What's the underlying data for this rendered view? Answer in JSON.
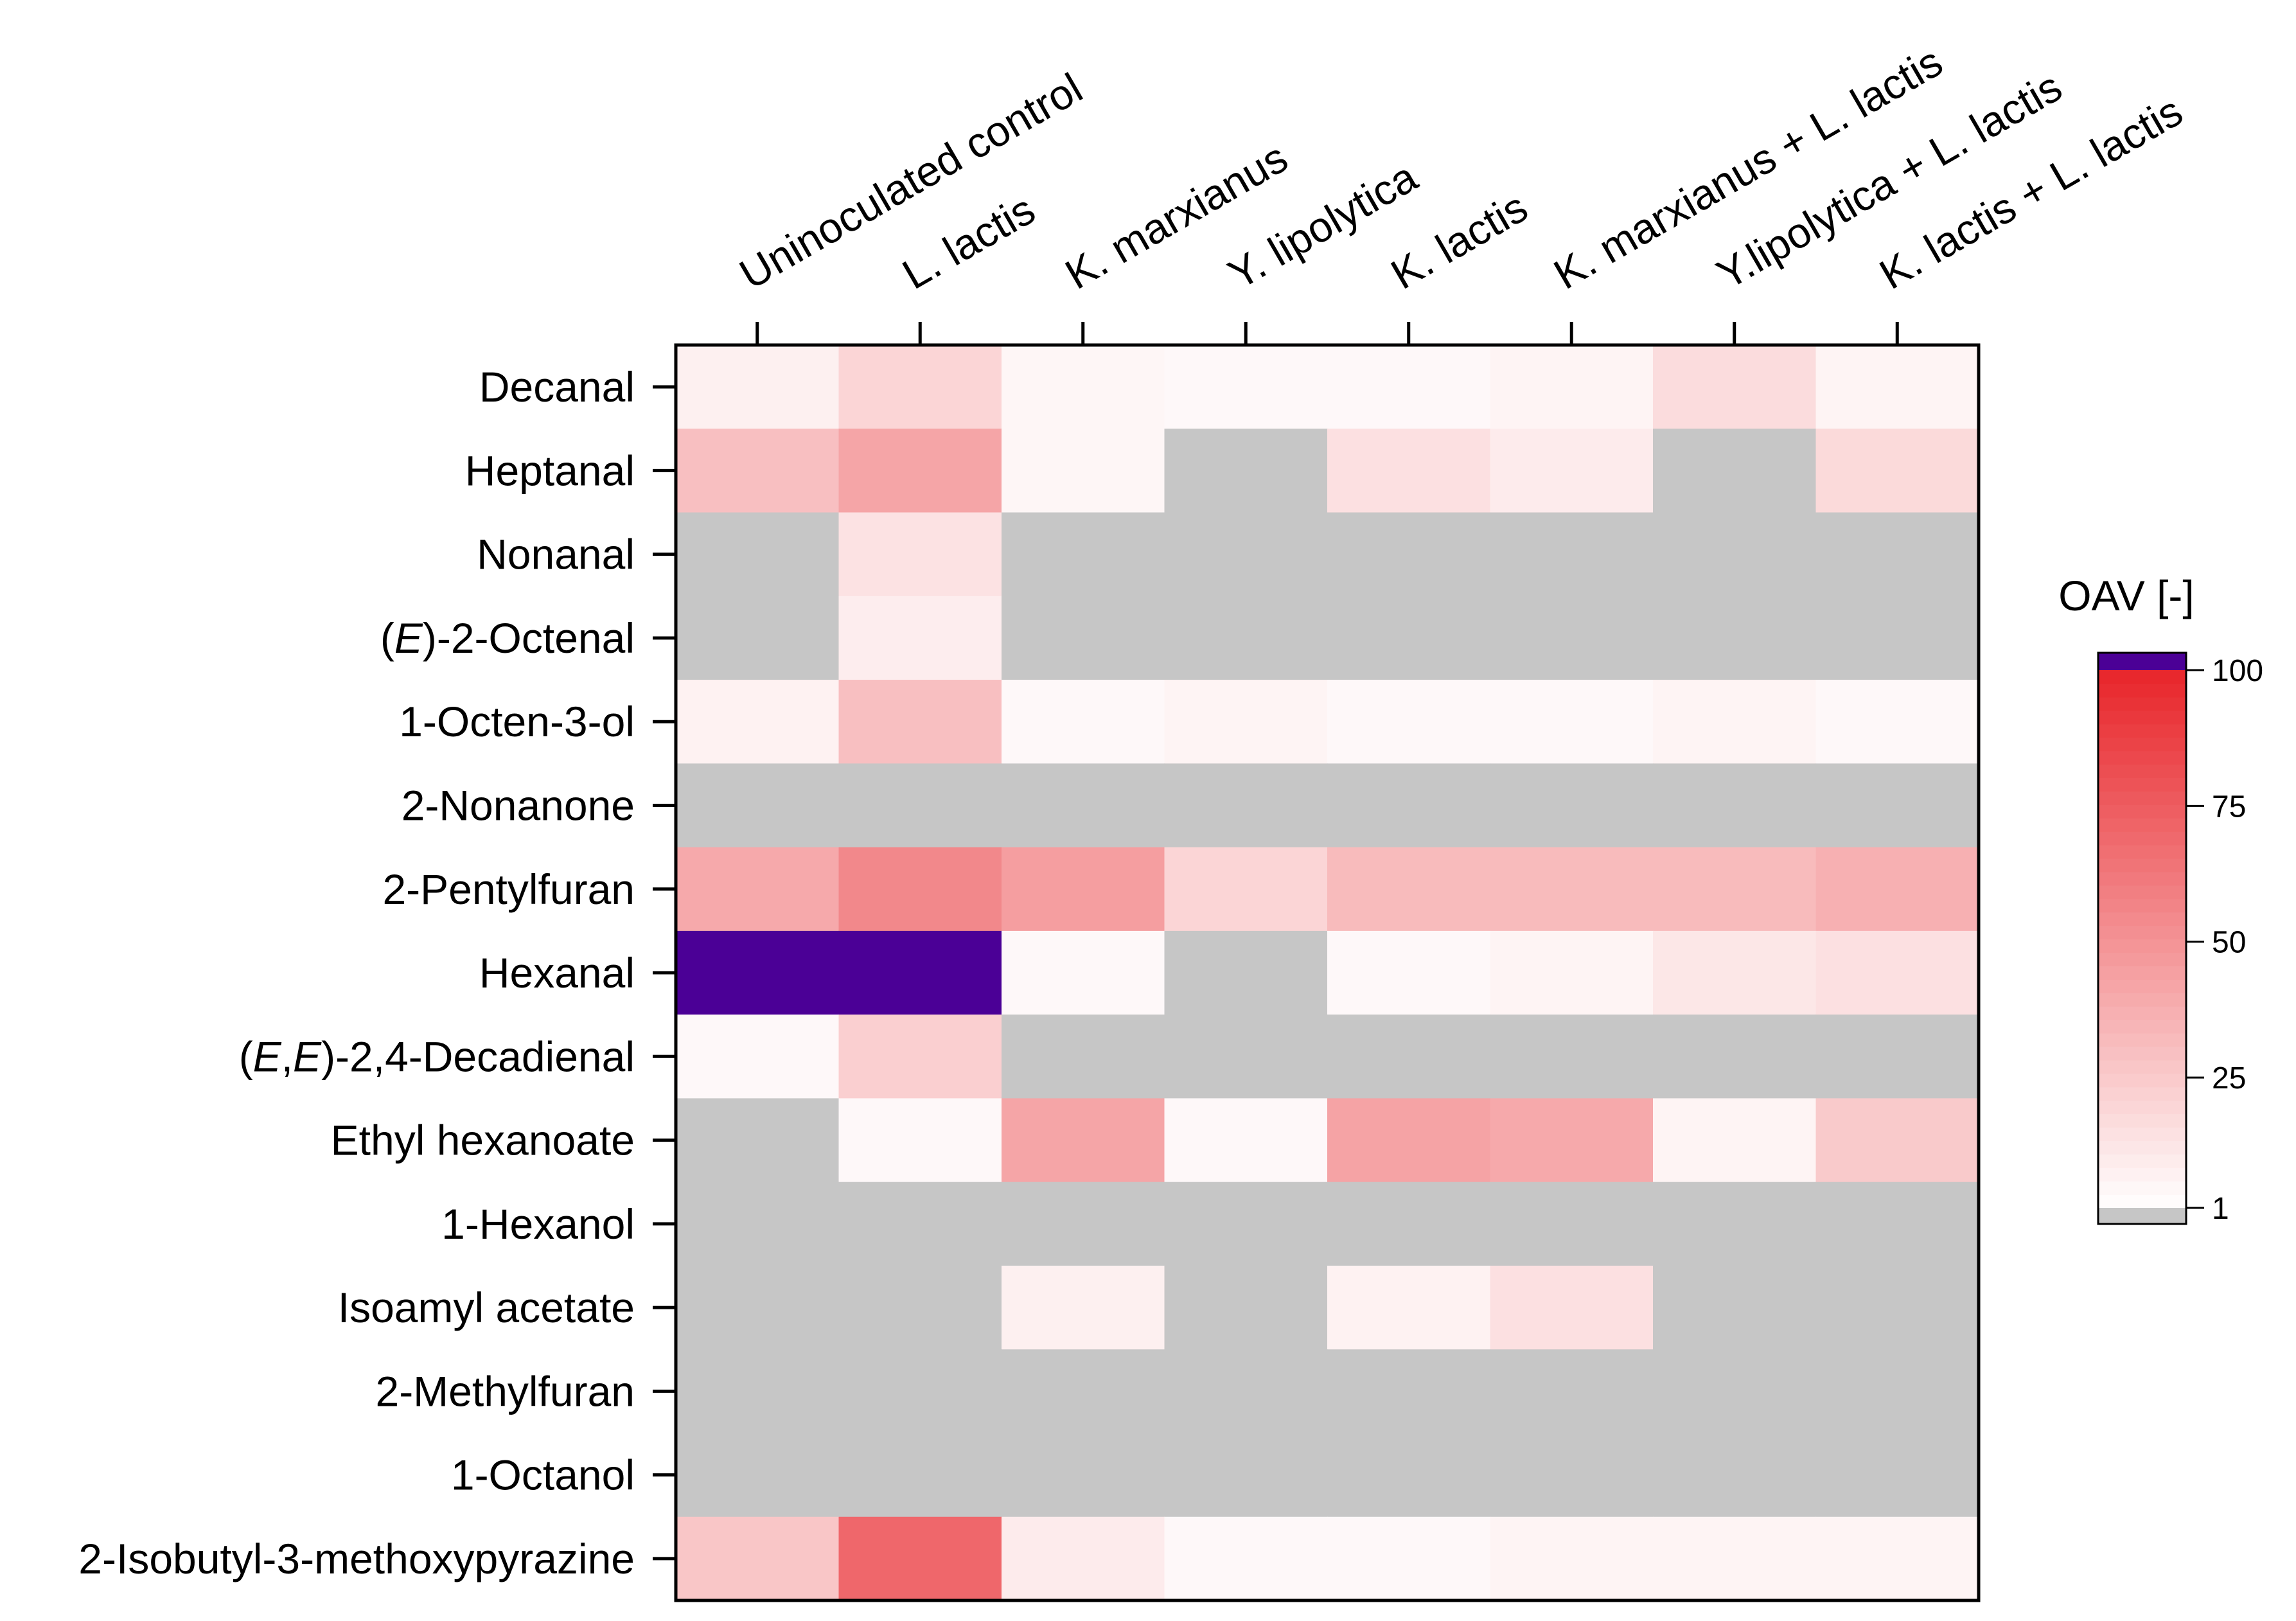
{
  "chart_data": {
    "type": "heatmap",
    "columns": [
      "Uninoculated control",
      "L. lactis",
      "K. marxianus",
      "Y. lipolytica",
      "K. lactis",
      "K. marxianus + L. lactis",
      "Y.lipolytica + L. lactis",
      "K. lactis + L. lactis"
    ],
    "rows": [
      "Decanal",
      "Heptanal",
      "Nonanal",
      "(E)-2-Octenal",
      "1-Octen-3-ol",
      "2-Nonanone",
      "2-Pentylfuran",
      "Hexanal",
      "(E,E)-2,4-Decadienal",
      "Ethyl hexanoate",
      "1-Hexanol",
      "Isoamyl acetate",
      "2-Methylfuran",
      "1-Octanol",
      "2-Isobutyl-3-methoxypyrazine"
    ],
    "row_label_parts": [
      [
        {
          "t": "Decanal",
          "i": false
        }
      ],
      [
        {
          "t": "Heptanal",
          "i": false
        }
      ],
      [
        {
          "t": "Nonanal",
          "i": false
        }
      ],
      [
        {
          "t": "(",
          "i": false
        },
        {
          "t": "E",
          "i": true
        },
        {
          "t": ")-2-Octenal",
          "i": false
        }
      ],
      [
        {
          "t": "1-Octen-3-ol",
          "i": false
        }
      ],
      [
        {
          "t": "2-Nonanone",
          "i": false
        }
      ],
      [
        {
          "t": "2-Pentylfuran",
          "i": false
        }
      ],
      [
        {
          "t": "Hexanal",
          "i": false
        }
      ],
      [
        {
          "t": "(",
          "i": false
        },
        {
          "t": "E",
          "i": true
        },
        {
          "t": ",",
          "i": false
        },
        {
          "t": "E",
          "i": true
        },
        {
          "t": ")-2,4-Decadienal",
          "i": false
        }
      ],
      [
        {
          "t": "Ethyl hexanoate",
          "i": false
        }
      ],
      [
        {
          "t": "1-Hexanol",
          "i": false
        }
      ],
      [
        {
          "t": "Isoamyl acetate",
          "i": false
        }
      ],
      [
        {
          "t": "2-Methylfuran",
          "i": false
        }
      ],
      [
        {
          "t": "1-Octanol",
          "i": false
        }
      ],
      [
        {
          "t": "2-Isobutyl-3-methoxypyrazine",
          "i": false
        }
      ]
    ],
    "values": [
      [
        8,
        20,
        5,
        4,
        4,
        6,
        17,
        6
      ],
      [
        30,
        42,
        5,
        null,
        15,
        10,
        null,
        18
      ],
      [
        null,
        14,
        null,
        null,
        null,
        null,
        null,
        null
      ],
      [
        null,
        9,
        null,
        null,
        null,
        null,
        null,
        null
      ],
      [
        7,
        30,
        4,
        6,
        4,
        4,
        6,
        4
      ],
      [
        null,
        null,
        null,
        null,
        null,
        null,
        null,
        null
      ],
      [
        40,
        55,
        45,
        20,
        32,
        32,
        32,
        37
      ],
      [
        110,
        110,
        4,
        null,
        4,
        6,
        12,
        15
      ],
      [
        4,
        23,
        null,
        null,
        null,
        null,
        null,
        null
      ],
      [
        null,
        4,
        42,
        4,
        43,
        40,
        6,
        25
      ],
      [
        null,
        null,
        null,
        null,
        null,
        null,
        null,
        null
      ],
      [
        null,
        null,
        8,
        null,
        7,
        15,
        null,
        null
      ],
      [
        null,
        null,
        null,
        null,
        null,
        null,
        null,
        null
      ],
      [
        null,
        null,
        null,
        null,
        null,
        null,
        null,
        null
      ],
      [
        27,
        70,
        10,
        4,
        4,
        6,
        6,
        6
      ]
    ],
    "colorbar": {
      "title": "OAV [-]",
      "ticks": [
        1,
        25,
        50,
        75,
        100
      ],
      "range": [
        1,
        100
      ],
      "below_threshold_color": "#c6c6c6",
      "over_max_color": "#4b0096",
      "low_color": "#ffffff",
      "high_color": "#e8252a"
    }
  }
}
